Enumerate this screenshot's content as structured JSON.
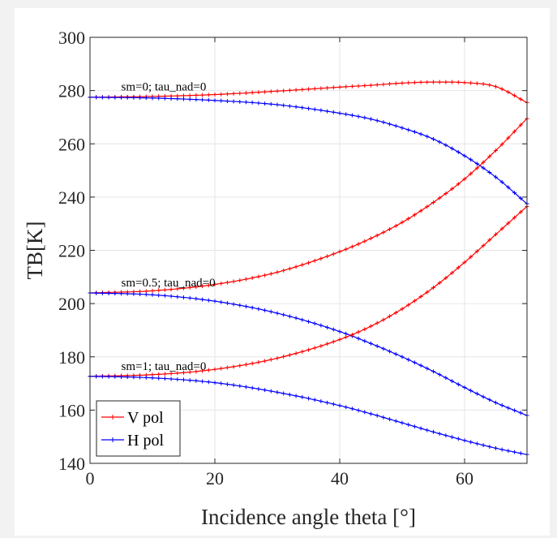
{
  "chart_data": {
    "type": "line",
    "title": "",
    "xlabel": "Incidence angle theta [°]",
    "ylabel": "TB[K]",
    "xlim": [
      0,
      70
    ],
    "ylim": [
      140,
      300
    ],
    "xticks": [
      0,
      20,
      40,
      60
    ],
    "yticks": [
      140,
      160,
      180,
      200,
      220,
      240,
      260,
      280,
      300
    ],
    "grid": true,
    "legend_position": "bottom-left",
    "legend": [
      "V pol",
      "H pol"
    ],
    "colors": {
      "V pol": "#ff0000",
      "H pol": "#0000ff"
    },
    "x": [
      0,
      10,
      20,
      30,
      40,
      45,
      50,
      55,
      60,
      65,
      70
    ],
    "series": [
      {
        "name": "V pol",
        "group": "sm=0; tau_nad=0",
        "values": [
          277.5,
          277.8,
          278.5,
          279.8,
          281.3,
          282.0,
          282.8,
          283.2,
          283.0,
          281.5,
          275.5
        ]
      },
      {
        "name": "H pol",
        "group": "sm=0; tau_nad=0",
        "values": [
          277.5,
          277.2,
          276.3,
          274.7,
          271.5,
          269.3,
          266.0,
          261.8,
          255.5,
          247.5,
          237.5
        ]
      },
      {
        "name": "V pol",
        "group": "sm=0.5; tau_nad=0",
        "values": [
          204.0,
          204.8,
          207.2,
          211.8,
          219.5,
          224.5,
          230.5,
          238.0,
          246.8,
          257.5,
          269.5
        ]
      },
      {
        "name": "H pol",
        "group": "sm=0.5; tau_nad=0",
        "values": [
          204.0,
          203.3,
          200.9,
          196.4,
          189.5,
          185.0,
          180.0,
          174.5,
          168.5,
          162.8,
          158.0
        ]
      },
      {
        "name": "V pol",
        "group": "sm=1; tau_nad=0",
        "values": [
          172.7,
          173.3,
          175.3,
          179.5,
          186.5,
          191.5,
          198.0,
          206.0,
          215.5,
          226.0,
          236.5
        ]
      },
      {
        "name": "H pol",
        "group": "sm=1; tau_nad=0",
        "values": [
          172.7,
          172.1,
          170.3,
          166.7,
          161.7,
          158.6,
          155.2,
          151.8,
          148.6,
          145.7,
          143.3
        ]
      }
    ],
    "annotations": [
      {
        "text": "sm=0; tau_nad=0",
        "x": 5,
        "y": 280
      },
      {
        "text": "sm=0.5; tau_nad=0",
        "x": 5,
        "y": 206.5
      },
      {
        "text": "sm=1; tau_nad=0",
        "x": 5,
        "y": 175
      }
    ]
  }
}
